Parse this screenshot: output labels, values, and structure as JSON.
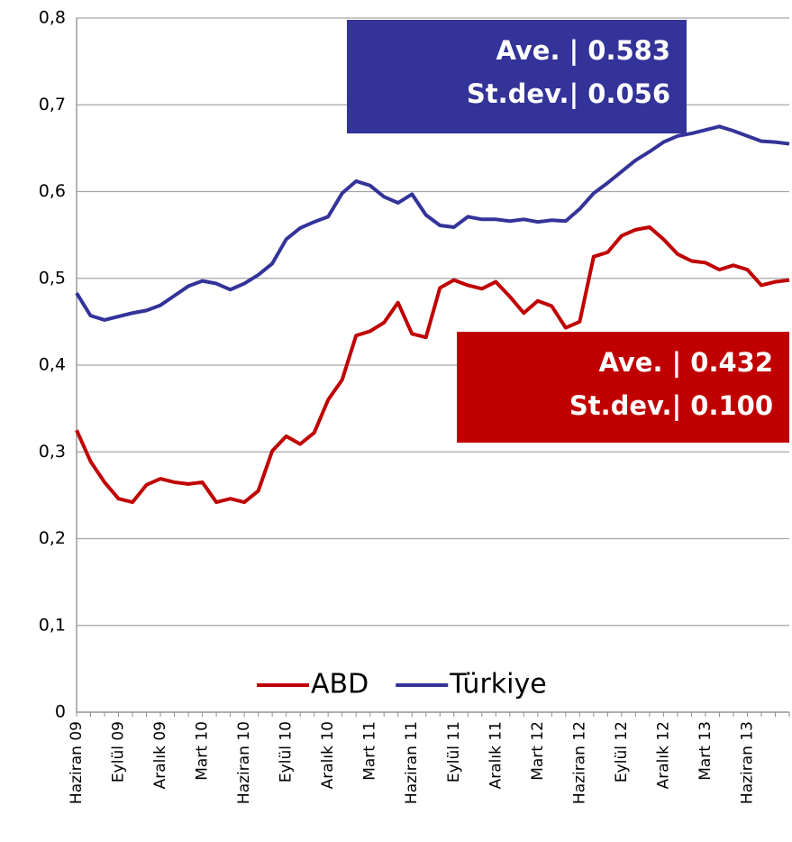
{
  "chart_data": {
    "type": "line",
    "categories": [
      "Haziran 09",
      null,
      null,
      "Eylül 09",
      null,
      null,
      "Aralık 09",
      null,
      null,
      "Mart 10",
      null,
      null,
      "Haziran 10",
      null,
      null,
      "Eylül 10",
      null,
      null,
      "Aralık 10",
      null,
      null,
      "Mart 11",
      null,
      null,
      "Haziran 11",
      null,
      null,
      "Eylül 11",
      null,
      null,
      "Aralık 11",
      null,
      null,
      "Mart 12",
      null,
      null,
      "Haziran 12",
      null,
      null,
      "Eylül 12",
      null,
      null,
      "Aralık 12",
      null,
      null,
      "Mart 13",
      null,
      null,
      "Haziran 13",
      null,
      null,
      null
    ],
    "series": [
      {
        "name": "ABD",
        "color": "#c00000",
        "values": [
          0.325,
          0.289,
          0.265,
          0.246,
          0.242,
          0.262,
          0.269,
          0.265,
          0.263,
          0.265,
          0.242,
          0.246,
          0.242,
          0.255,
          0.301,
          0.318,
          0.309,
          0.322,
          0.36,
          0.383,
          0.434,
          0.439,
          0.449,
          0.472,
          0.436,
          0.432,
          0.489,
          0.498,
          0.492,
          0.488,
          0.496,
          0.479,
          0.46,
          0.474,
          0.468,
          0.443,
          0.45,
          0.525,
          0.53,
          0.549,
          0.556,
          0.559,
          0.545,
          0.528,
          0.52,
          0.518,
          0.51,
          0.515,
          0.51,
          0.492,
          0.496,
          0.498
        ]
      },
      {
        "name": "Türkiye",
        "color": "#333399",
        "values": [
          0.483,
          0.457,
          0.452,
          0.456,
          0.46,
          0.463,
          0.469,
          0.48,
          0.491,
          0.497,
          0.494,
          0.487,
          0.494,
          0.504,
          0.517,
          0.545,
          0.558,
          0.565,
          0.571,
          0.598,
          0.612,
          0.607,
          0.594,
          0.587,
          0.597,
          0.573,
          0.561,
          0.559,
          0.571,
          0.568,
          0.568,
          0.566,
          0.568,
          0.565,
          0.567,
          0.566,
          0.58,
          0.598,
          0.61,
          0.623,
          0.636,
          0.646,
          0.657,
          0.664,
          0.667,
          0.671,
          0.675,
          0.67,
          0.664,
          0.658,
          0.657,
          0.655
        ]
      }
    ],
    "ylim": [
      0,
      0.8
    ],
    "yticks": [
      0,
      {
        "value": 0.1,
        "label": "0,1"
      },
      {
        "value": 0.2,
        "label": "0,2"
      },
      {
        "value": 0.3,
        "label": "0,3"
      },
      {
        "value": 0.4,
        "label": "0,4"
      },
      {
        "value": 0.5,
        "label": "0,5"
      },
      {
        "value": 0.6,
        "label": "0,6"
      },
      {
        "value": 0.7,
        "label": "0,7"
      },
      {
        "value": 0.8,
        "label": "0,8"
      }
    ],
    "grid": true,
    "legend": "bottom",
    "annotations": [
      {
        "lines": [
          "Ave. | 0.583",
          "St.dev.| 0.056"
        ],
        "color": "#333399"
      },
      {
        "lines": [
          "Ave. | 0.432",
          "St.dev.| 0.100"
        ],
        "color": "#c00000"
      }
    ]
  }
}
